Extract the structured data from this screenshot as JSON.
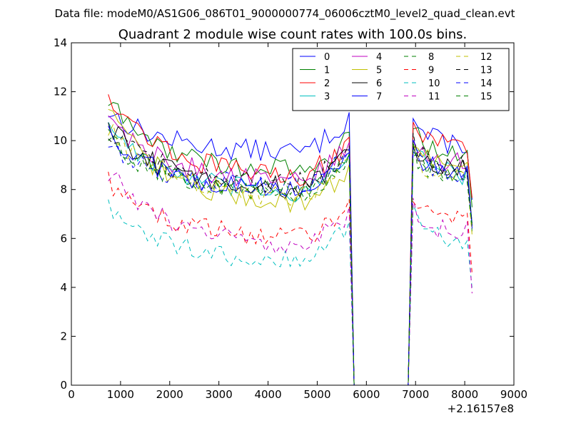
{
  "chart_data": {
    "type": "line",
    "suptitle": "Data file: modeM0/AS1G06_086T01_9000000774_06006cztM0_level2_quad_clean.evt",
    "title": "Quadrant 2 module wise count rates with 100.0s bins.",
    "xlabel": "",
    "ylabel": "",
    "x_offset_label": "+2.16157e8",
    "xlim": [
      0,
      9000
    ],
    "ylim": [
      0,
      14
    ],
    "xticks": [
      0,
      1000,
      2000,
      3000,
      4000,
      5000,
      6000,
      7000,
      8000,
      9000
    ],
    "yticks": [
      0,
      2,
      4,
      6,
      8,
      10,
      12,
      14
    ],
    "legend_location": "top-right",
    "legend_columns": 4,
    "x_start": 750,
    "x_step": 100,
    "x_end": 8150,
    "gap_range": [
      5700,
      6900
    ],
    "series": [
      {
        "name": "0",
        "color": "#0000ff",
        "dash": false,
        "base": 9.5,
        "start": 11.2,
        "after": 9.8
      },
      {
        "name": "1",
        "color": "#008000",
        "dash": false,
        "base": 8.7,
        "start": 11.6,
        "after": 9.4
      },
      {
        "name": "2",
        "color": "#ff0000",
        "dash": false,
        "base": 8.5,
        "start": 12.0,
        "after": 9.7
      },
      {
        "name": "3",
        "color": "#00bfbf",
        "dash": false,
        "base": 7.8,
        "start": 10.8,
        "after": 8.6
      },
      {
        "name": "4",
        "color": "#bf00bf",
        "dash": false,
        "base": 8.3,
        "start": 11.0,
        "after": 9.0
      },
      {
        "name": "5",
        "color": "#bfbf00",
        "dash": false,
        "base": 7.4,
        "start": 11.2,
        "after": 8.8
      },
      {
        "name": "6",
        "color": "#000000",
        "dash": false,
        "base": 8.0,
        "start": 10.6,
        "after": 8.8
      },
      {
        "name": "7",
        "color": "#0000ff",
        "dash": false,
        "base": 7.9,
        "start": 10.4,
        "after": 8.6
      },
      {
        "name": "8",
        "color": "#008000",
        "dash": true,
        "base": 7.8,
        "start": 10.2,
        "after": 8.4
      },
      {
        "name": "9",
        "color": "#ff0000",
        "dash": true,
        "base": 6.0,
        "start": 8.4,
        "after": 6.6
      },
      {
        "name": "10",
        "color": "#00bfbf",
        "dash": true,
        "base": 5.1,
        "start": 7.2,
        "after": 5.9
      },
      {
        "name": "11",
        "color": "#bf00bf",
        "dash": true,
        "base": 5.7,
        "start": 8.8,
        "after": 6.2
      },
      {
        "name": "12",
        "color": "#bfbf00",
        "dash": true,
        "base": 7.7,
        "start": 10.6,
        "after": 8.5
      },
      {
        "name": "13",
        "color": "#000000",
        "dash": true,
        "base": 8.2,
        "start": 10.4,
        "after": 8.9
      },
      {
        "name": "14",
        "color": "#0000ff",
        "dash": true,
        "base": 8.1,
        "start": 10.0,
        "after": 8.7
      },
      {
        "name": "15",
        "color": "#008000",
        "dash": true,
        "base": 7.9,
        "start": 10.2,
        "after": 8.6
      }
    ]
  }
}
